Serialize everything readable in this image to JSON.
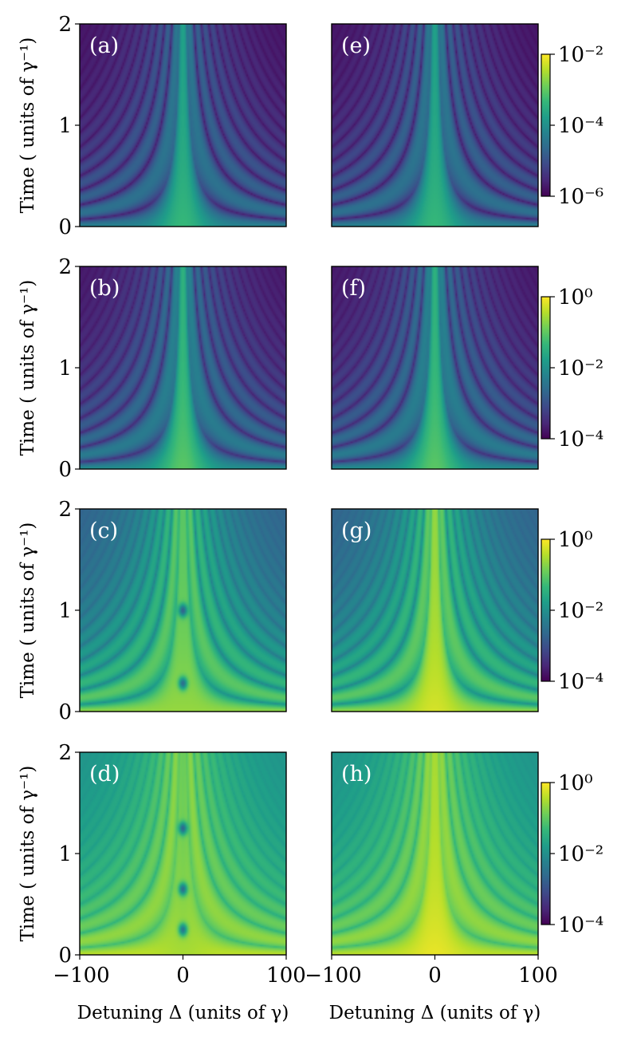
{
  "colors": {
    "viridis": [
      "#440154",
      "#482878",
      "#3e4989",
      "#31688e",
      "#26828e",
      "#1f9e89",
      "#35b779",
      "#6ece58",
      "#b5de2b",
      "#fde725"
    ]
  },
  "chart_data": [
    {
      "type": "heatmap",
      "panel": "(a)",
      "column": "left",
      "row": 1,
      "xlabel": "",
      "ylabel": "Time ( units of γ⁻¹)",
      "xlim": [
        -100,
        100
      ],
      "ylim": [
        0,
        2
      ],
      "yticks": [
        "0",
        "1",
        "2"
      ],
      "color_scale": "log",
      "background_level": 0.04,
      "center_level": 0.55,
      "fringe_amp": 0.45,
      "fringe_base": 0.05,
      "central_dips": []
    },
    {
      "type": "heatmap",
      "panel": "(b)",
      "column": "left",
      "row": 2,
      "xlabel": "",
      "ylabel": "Time ( units of γ⁻¹)",
      "xlim": [
        -100,
        100
      ],
      "ylim": [
        0,
        2
      ],
      "yticks": [
        "0",
        "1",
        "2"
      ],
      "color_scale": "log",
      "background_level": 0.05,
      "center_level": 0.62,
      "fringe_amp": 0.45,
      "fringe_base": 0.1,
      "central_dips": []
    },
    {
      "type": "heatmap",
      "panel": "(c)",
      "column": "left",
      "row": 3,
      "xlabel": "",
      "ylabel": "Time ( units of γ⁻¹)",
      "xlim": [
        -100,
        100
      ],
      "ylim": [
        0,
        2
      ],
      "yticks": [
        "0",
        "1",
        "2"
      ],
      "color_scale": "log",
      "background_level": 0.3,
      "center_level": 0.72,
      "fringe_amp": 0.55,
      "fringe_base": 0.35,
      "central_dips": [
        0.28,
        1.0
      ]
    },
    {
      "type": "heatmap",
      "panel": "(d)",
      "column": "left",
      "row": 4,
      "xlabel": "Detuning Δ (units of γ)",
      "ylabel": "Time ( units of γ⁻¹)",
      "xlim": [
        -100,
        100
      ],
      "ylim": [
        0,
        2
      ],
      "xticks": [
        "−100",
        "0",
        "100"
      ],
      "yticks": [
        "0",
        "1",
        "2"
      ],
      "color_scale": "log",
      "background_level": 0.5,
      "center_level": 0.75,
      "fringe_amp": 0.5,
      "fringe_base": 0.45,
      "central_dips": [
        0.25,
        0.65,
        1.25
      ]
    },
    {
      "type": "heatmap",
      "panel": "(e)",
      "column": "right",
      "row": 1,
      "xlabel": "",
      "ylabel": "",
      "xlim": [
        -100,
        100
      ],
      "ylim": [
        0,
        2
      ],
      "color_scale": "log",
      "colorbar": {
        "ticks": [
          "10⁻²",
          "10⁻⁴",
          "10⁻⁶"
        ]
      },
      "background_level": 0.04,
      "center_level": 0.55,
      "fringe_amp": 0.45,
      "fringe_base": 0.05,
      "central_dips": []
    },
    {
      "type": "heatmap",
      "panel": "(f)",
      "column": "right",
      "row": 2,
      "xlabel": "",
      "ylabel": "",
      "xlim": [
        -100,
        100
      ],
      "ylim": [
        0,
        2
      ],
      "color_scale": "log",
      "colorbar": {
        "ticks": [
          "10⁰",
          "10⁻²",
          "10⁻⁴"
        ]
      },
      "background_level": 0.05,
      "center_level": 0.62,
      "fringe_amp": 0.45,
      "fringe_base": 0.1,
      "central_dips": []
    },
    {
      "type": "heatmap",
      "panel": "(g)",
      "column": "right",
      "row": 3,
      "xlabel": "",
      "ylabel": "",
      "xlim": [
        -100,
        100
      ],
      "ylim": [
        0,
        2
      ],
      "color_scale": "log",
      "colorbar": {
        "ticks": [
          "10⁰",
          "10⁻²",
          "10⁻⁴"
        ]
      },
      "background_level": 0.3,
      "center_level": 0.82,
      "fringe_amp": 0.55,
      "fringe_base": 0.35,
      "central_dips": []
    },
    {
      "type": "heatmap",
      "panel": "(h)",
      "column": "right",
      "row": 4,
      "xlabel": "Detuning Δ (units of γ)",
      "ylabel": "",
      "xlim": [
        -100,
        100
      ],
      "ylim": [
        0,
        2
      ],
      "xticks": [
        "−100",
        "0",
        "100"
      ],
      "color_scale": "log",
      "colorbar": {
        "ticks": [
          "10⁰",
          "10⁻²",
          "10⁻⁴"
        ]
      },
      "background_level": 0.5,
      "center_level": 0.85,
      "fringe_amp": 0.5,
      "fringe_base": 0.45,
      "central_dips": []
    }
  ]
}
